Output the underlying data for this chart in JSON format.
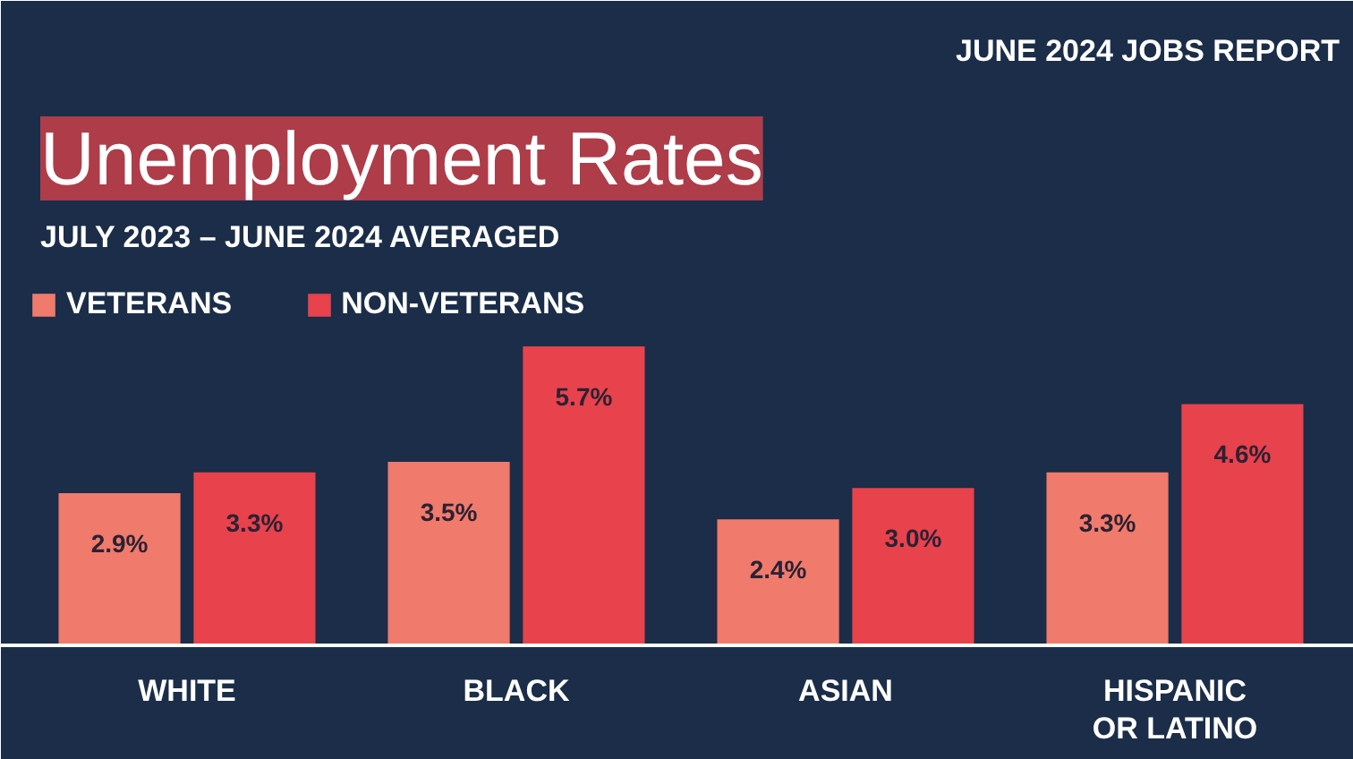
{
  "chart_data": {
    "type": "bar",
    "title": "Unemployment Rates",
    "subtitle": "JULY 2023 – JUNE 2024 AVERAGED",
    "annotations": [
      "JUNE 2024 JOBS REPORT"
    ],
    "categories": [
      "WHITE",
      "BLACK",
      "ASIAN",
      "HISPANIC\nOR LATINO"
    ],
    "series": [
      {
        "name": "VETERANS",
        "color": "#f07a6c",
        "values": [
          2.9,
          3.5,
          2.4,
          3.3
        ],
        "value_labels": [
          "2.9%",
          "3.5%",
          "2.4%",
          "3.3%"
        ]
      },
      {
        "name": "NON-VETERANS",
        "color": "#e8424d",
        "values": [
          3.3,
          5.7,
          3.0,
          4.6
        ],
        "value_labels": [
          "3.3%",
          "5.7%",
          "3.0%",
          "4.6%"
        ]
      }
    ],
    "legend": "top left"
  }
}
